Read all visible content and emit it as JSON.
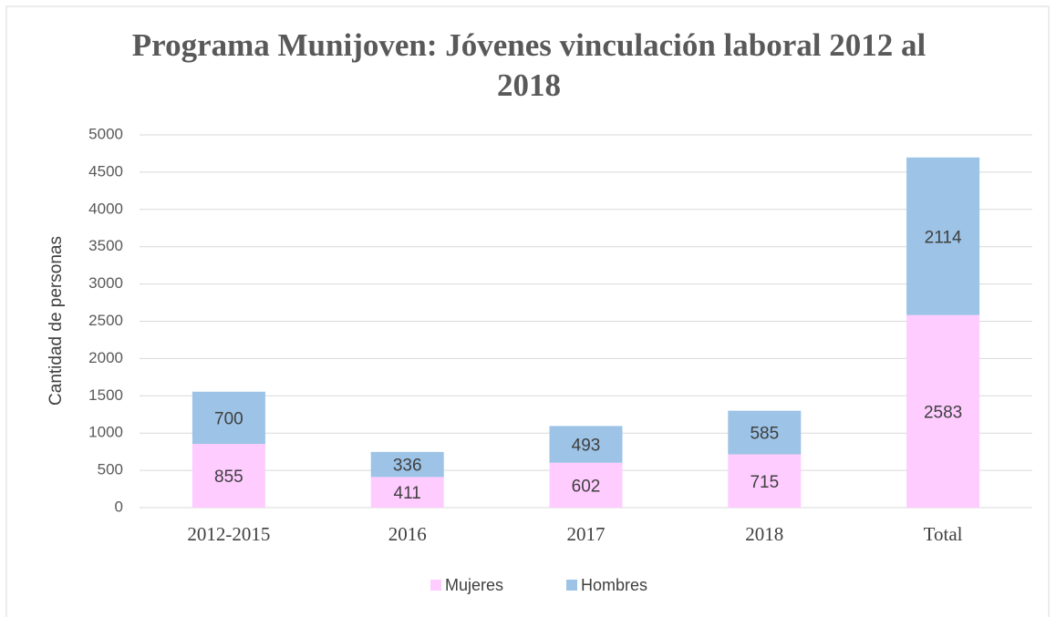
{
  "chart_data": {
    "type": "stacked_bar",
    "title": "Programa Munijoven: Jóvenes vinculación laboral 2012 al 2018",
    "y_label": "Cantidad de personas",
    "categories": [
      "2012-2015",
      "2016",
      "2017",
      "2018",
      "Total"
    ],
    "series": [
      {
        "name": "Mujeres",
        "color": "#ffccff",
        "values": [
          855,
          411,
          602,
          715,
          2583
        ]
      },
      {
        "name": "Hombres",
        "color": "#9dc3e6",
        "values": [
          700,
          336,
          493,
          585,
          2114
        ]
      }
    ],
    "ylim": [
      0,
      5000
    ],
    "yticks": [
      0,
      500,
      1000,
      1500,
      2000,
      2500,
      3000,
      3500,
      4000,
      4500,
      5000
    ],
    "grid": true,
    "legend": "bottom"
  }
}
